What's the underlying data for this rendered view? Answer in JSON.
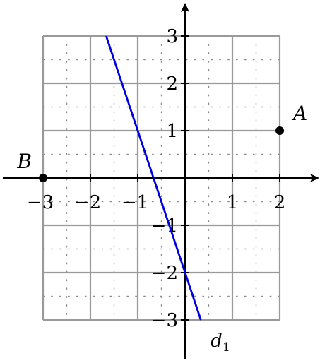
{
  "chart_data": {
    "type": "line",
    "xlim": [
      -3,
      2
    ],
    "ylim": [
      -3,
      3
    ],
    "grid": true,
    "minor_grid": "dotted",
    "x_ticks": [
      {
        "value": -3,
        "label": "−3"
      },
      {
        "value": -2,
        "label": "−2"
      },
      {
        "value": -1,
        "label": "−1"
      },
      {
        "value": 1,
        "label": "1"
      },
      {
        "value": 2,
        "label": "2"
      }
    ],
    "y_ticks": [
      {
        "value": 3,
        "label": "3"
      },
      {
        "value": 2,
        "label": "2"
      },
      {
        "value": 1,
        "label": "1"
      },
      {
        "value": -1,
        "label": "−1"
      },
      {
        "value": -2,
        "label": "−2"
      },
      {
        "value": -3,
        "label": "−3"
      }
    ],
    "points": [
      {
        "name": "A",
        "x": 2,
        "y": 1
      },
      {
        "name": "B",
        "x": -3,
        "y": 0
      }
    ],
    "series": [
      {
        "name": "d",
        "subscript": "1",
        "color": "#0000dd",
        "x": [
          -1.667,
          0.333
        ],
        "y": [
          3,
          -3
        ]
      }
    ]
  }
}
